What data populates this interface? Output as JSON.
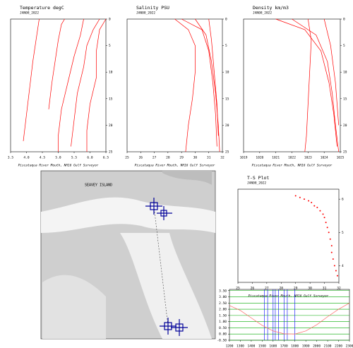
{
  "chart_data": [
    {
      "type": "line",
      "title": "Temperature degC",
      "subtitle": "JAN08_2022",
      "footer": "Piscataqua River Mouth, NH16 Gulf Surveyor",
      "xlim": [
        3.5,
        6.5
      ],
      "xticks": [
        3.5,
        {
          "value": 4,
          "label": "4.0"
        },
        4.5,
        {
          "value": 5,
          "label": "5.0"
        },
        5.5,
        {
          "value": 6,
          "label": "6.0"
        },
        6.5
      ],
      "ylim": [
        0,
        25
      ],
      "yticks": [
        0,
        5,
        10,
        15,
        20,
        25
      ],
      "invert_y": true,
      "ytick_side": "right",
      "grid": false,
      "series": [
        {
          "color": "#ff0000",
          "x": [
            6.3,
            6.1,
            5.9,
            5.8,
            5.6,
            5.5,
            5.4
          ],
          "values": [
            0,
            2,
            5,
            9,
            14,
            19,
            24
          ]
        },
        {
          "color": "#ff0000",
          "x": [
            5.8,
            5.7,
            5.5,
            5.3,
            5.1,
            5.0,
            5.0
          ],
          "values": [
            0,
            3,
            7,
            12,
            17,
            22,
            25
          ]
        },
        {
          "color": "#ff0000",
          "x": [
            6.5,
            6.3,
            6.2,
            6.2,
            6.0,
            5.9,
            5.9
          ],
          "values": [
            0,
            2,
            6,
            11,
            16,
            21,
            25
          ]
        },
        {
          "color": "#ff0000",
          "x": [
            4.4,
            4.3,
            4.2,
            4.1,
            4.0,
            3.9
          ],
          "values": [
            0,
            4,
            8,
            13,
            18,
            23
          ]
        },
        {
          "color": "#ff0000",
          "x": [
            5.2,
            5.1,
            5.0,
            4.9,
            4.8,
            4.7
          ],
          "values": [
            0,
            1,
            4,
            8,
            12,
            17
          ]
        }
      ]
    },
    {
      "type": "line",
      "title": "Salinity PSU",
      "subtitle": "JAN08_2022",
      "footer": "Piscataqua River Mouth, NH16 Gulf Surveyor",
      "xlim": [
        25,
        32
      ],
      "xticks": [
        25,
        26,
        27,
        28,
        29,
        30,
        31,
        32
      ],
      "ylim": [
        0,
        25
      ],
      "yticks": [
        0,
        5,
        10,
        15,
        20,
        25
      ],
      "invert_y": true,
      "ytick_side": "right",
      "grid": false,
      "series": [
        {
          "color": "#ff0000",
          "x": [
            29.0,
            30.5,
            31.0,
            31.3,
            31.5,
            31.6
          ],
          "values": [
            0,
            2,
            6,
            12,
            18,
            24
          ]
        },
        {
          "color": "#ff0000",
          "x": [
            30.0,
            30.8,
            31.2,
            31.5,
            31.7,
            31.8
          ],
          "values": [
            0,
            3,
            8,
            14,
            20,
            25
          ]
        },
        {
          "color": "#ff0000",
          "x": [
            28.5,
            29.5,
            30.0,
            30.0,
            29.8,
            29.5,
            29.3
          ],
          "values": [
            0,
            2,
            5,
            10,
            15,
            20,
            25
          ]
        },
        {
          "color": "#ff0000",
          "x": [
            31.0,
            31.2,
            31.4,
            31.6,
            31.7
          ],
          "values": [
            0,
            4,
            10,
            16,
            22
          ]
        }
      ]
    },
    {
      "type": "line",
      "title": "Density km/m3",
      "subtitle": "JAN08_2022",
      "footer": "Piscataqua River Mouth, NH16 Gulf Surveyor",
      "xlim": [
        1019,
        1025
      ],
      "xticks": [
        1019,
        1020,
        1021,
        1022,
        1023,
        1024,
        1025
      ],
      "ylim": [
        0,
        25
      ],
      "yticks": [
        0,
        5,
        10,
        15,
        20,
        25
      ],
      "invert_y": true,
      "ytick_side": "right",
      "grid": false,
      "series": [
        {
          "color": "#ff0000",
          "x": [
            1022.0,
            1023.5,
            1024.2,
            1024.5,
            1024.7,
            1024.9
          ],
          "values": [
            0,
            3,
            8,
            14,
            20,
            25
          ]
        },
        {
          "color": "#ff0000",
          "x": [
            1021.0,
            1022.8,
            1023.8,
            1024.3,
            1024.6,
            1024.8
          ],
          "values": [
            0,
            2,
            6,
            12,
            18,
            24
          ]
        },
        {
          "color": "#ff0000",
          "x": [
            1023.0,
            1023.2,
            1023.1,
            1023.0,
            1022.9,
            1022.8
          ],
          "values": [
            0,
            4,
            10,
            16,
            22,
            25
          ]
        },
        {
          "color": "#ff0000",
          "x": [
            1024.0,
            1024.4,
            1024.7,
            1024.9
          ],
          "values": [
            0,
            5,
            12,
            20
          ]
        }
      ]
    },
    {
      "type": "scatter",
      "title": "T-S Plot",
      "subtitle": "JAN08_2022",
      "footer": "Piscataqua River Mouth, NH16 Gulf Surveyor",
      "xlim": [
        25,
        32
      ],
      "xticks": [
        25,
        26,
        27,
        28,
        29,
        30,
        31,
        32
      ],
      "ylim": [
        3.5,
        6.3
      ],
      "yticks": [
        4,
        5,
        6
      ],
      "ytick_side": "right",
      "grid": false,
      "color": "#ff0000",
      "x": [
        29.0,
        29.3,
        29.6,
        29.9,
        30.1,
        30.3,
        30.5,
        30.7,
        30.9,
        31.0,
        31.1,
        31.2,
        31.3,
        31.4,
        31.5,
        31.5,
        31.6,
        31.7,
        31.8,
        31.9
      ],
      "values": [
        6.1,
        6.05,
        6.0,
        5.95,
        5.9,
        5.8,
        5.75,
        5.65,
        5.55,
        5.45,
        5.3,
        5.15,
        5.0,
        4.8,
        4.6,
        4.4,
        4.2,
        4.0,
        3.85,
        3.7
      ]
    },
    {
      "type": "line",
      "xlim": [
        1200,
        2300
      ],
      "xticks": [
        1200,
        1300,
        1400,
        1500,
        1600,
        1700,
        1800,
        1900,
        2000,
        2100,
        2200,
        2300
      ],
      "ylim": [
        -0.5,
        3.6
      ],
      "yticks": [
        {
          "value": -0.5,
          "label": "-0.50"
        },
        {
          "value": 0,
          "label": "0.00"
        },
        {
          "value": 0.5,
          "label": "0.50"
        },
        {
          "value": 1,
          "label": "1.00"
        },
        {
          "value": 1.5,
          "label": "1.50"
        },
        {
          "value": 2,
          "label": "2.00"
        },
        {
          "value": 2.5,
          "label": "2.50"
        },
        {
          "value": 3,
          "label": "3.00"
        },
        {
          "value": 3.5,
          "label": "3.50"
        }
      ],
      "ytick_side": "left",
      "grid": true,
      "grid_color": "#00aa00",
      "x": [
        1200,
        1300,
        1400,
        1500,
        1600,
        1700,
        1800,
        1900,
        2000,
        2100,
        2200,
        2300
      ],
      "series": [
        {
          "color": "#ff6666",
          "values": [
            2.3,
            1.9,
            1.3,
            0.7,
            0.25,
            0.02,
            0.0,
            0.25,
            0.75,
            1.4,
            2.0,
            2.5
          ]
        }
      ],
      "vlines": [
        1520,
        1550,
        1600,
        1620,
        1650,
        1700,
        1730,
        1800
      ],
      "vline_color": "#0000ff"
    }
  ],
  "map": {
    "labels": [
      "SEAVEY ISLAND"
    ]
  }
}
